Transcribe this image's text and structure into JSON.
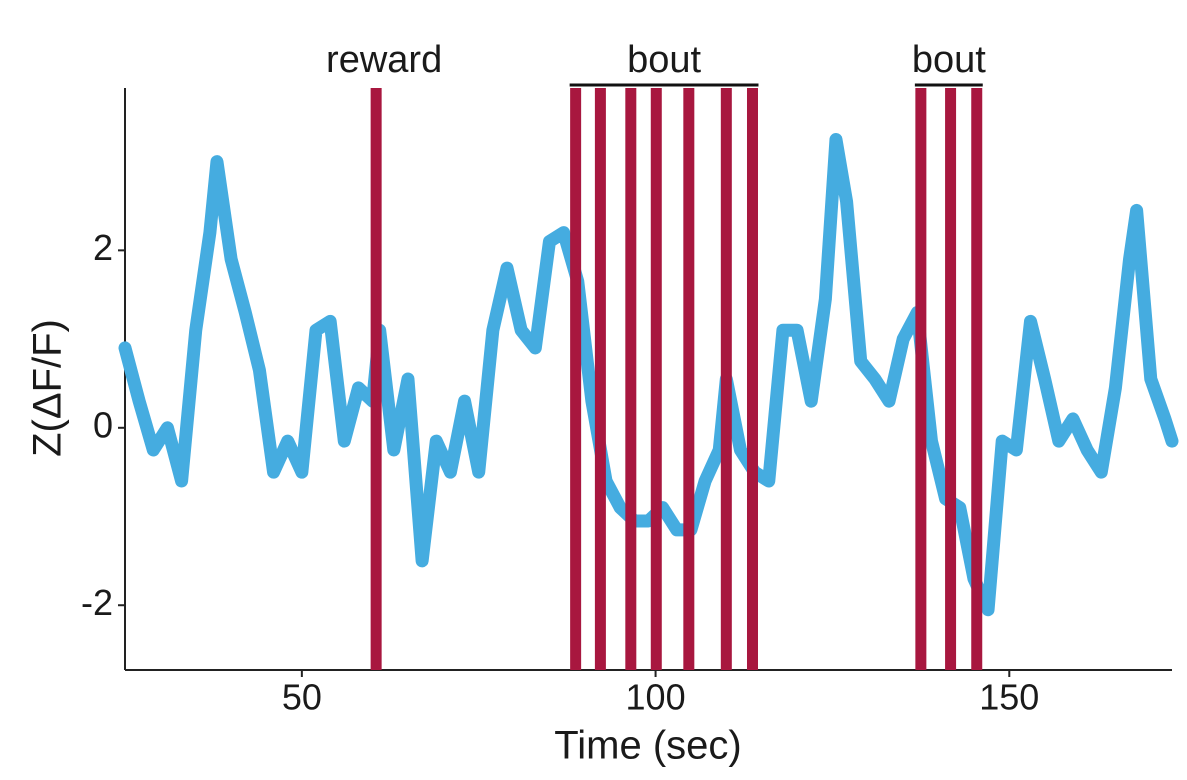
{
  "chart_data": {
    "type": "line",
    "xlabel": "Time (sec)",
    "ylabel": "Z(ΔF/F)",
    "xlim": [
      25,
      173
    ],
    "ylim": [
      -2.73,
      3.83
    ],
    "xticks": [
      50,
      100,
      150
    ],
    "yticks": [
      -2,
      0,
      2
    ],
    "color": "#45ace0",
    "event_color": "#a8173f",
    "x": [
      25,
      27,
      29,
      31,
      33,
      35,
      37,
      38,
      40,
      42,
      44,
      46,
      48,
      50,
      52,
      54,
      56,
      58,
      60,
      61,
      63,
      65,
      67,
      69,
      71,
      73,
      75,
      77,
      79,
      81,
      83,
      85,
      87,
      89,
      91,
      93,
      95,
      97,
      99,
      101,
      103,
      105,
      107,
      109,
      110,
      112,
      114,
      116,
      118,
      120,
      122,
      124,
      125.5,
      127,
      129,
      131,
      133,
      135,
      137,
      139,
      141,
      143,
      145,
      147,
      149,
      151,
      153,
      155,
      157,
      159,
      161,
      163,
      165,
      167,
      168,
      170,
      172,
      173
    ],
    "values": [
      0.9,
      0.3,
      -0.25,
      0,
      -0.6,
      1.1,
      2.2,
      3.0,
      1.9,
      1.3,
      0.65,
      -0.5,
      -0.15,
      -0.5,
      1.1,
      1.2,
      -0.15,
      0.45,
      0.3,
      1.1,
      -0.25,
      0.55,
      -1.5,
      -0.15,
      -0.5,
      0.3,
      -0.5,
      1.1,
      1.8,
      1.1,
      0.9,
      2.1,
      2.2,
      1.65,
      0.3,
      -0.6,
      -0.9,
      -1.05,
      -1.05,
      -0.9,
      -1.15,
      -1.15,
      -0.6,
      -0.25,
      0.55,
      -0.25,
      -0.5,
      -0.6,
      1.1,
      1.1,
      0.3,
      1.45,
      3.25,
      2.55,
      0.75,
      0.55,
      0.3,
      1.0,
      1.3,
      -0.15,
      -0.8,
      -0.9,
      -1.7,
      -2.05,
      -0.15,
      -0.25,
      1.2,
      0.55,
      -0.15,
      0.1,
      -0.25,
      -0.5,
      0.45,
      1.9,
      2.45,
      0.55,
      0.1,
      -0.15
    ],
    "events": [
      {
        "label": "reward",
        "x": [
          60.5
        ]
      },
      {
        "label": "bout",
        "x": [
          88.7,
          92.2,
          96.5,
          100.1,
          104.7,
          110.0,
          113.7
        ]
      },
      {
        "label": "bout",
        "x": [
          137.5,
          141.7,
          145.4
        ]
      }
    ]
  }
}
